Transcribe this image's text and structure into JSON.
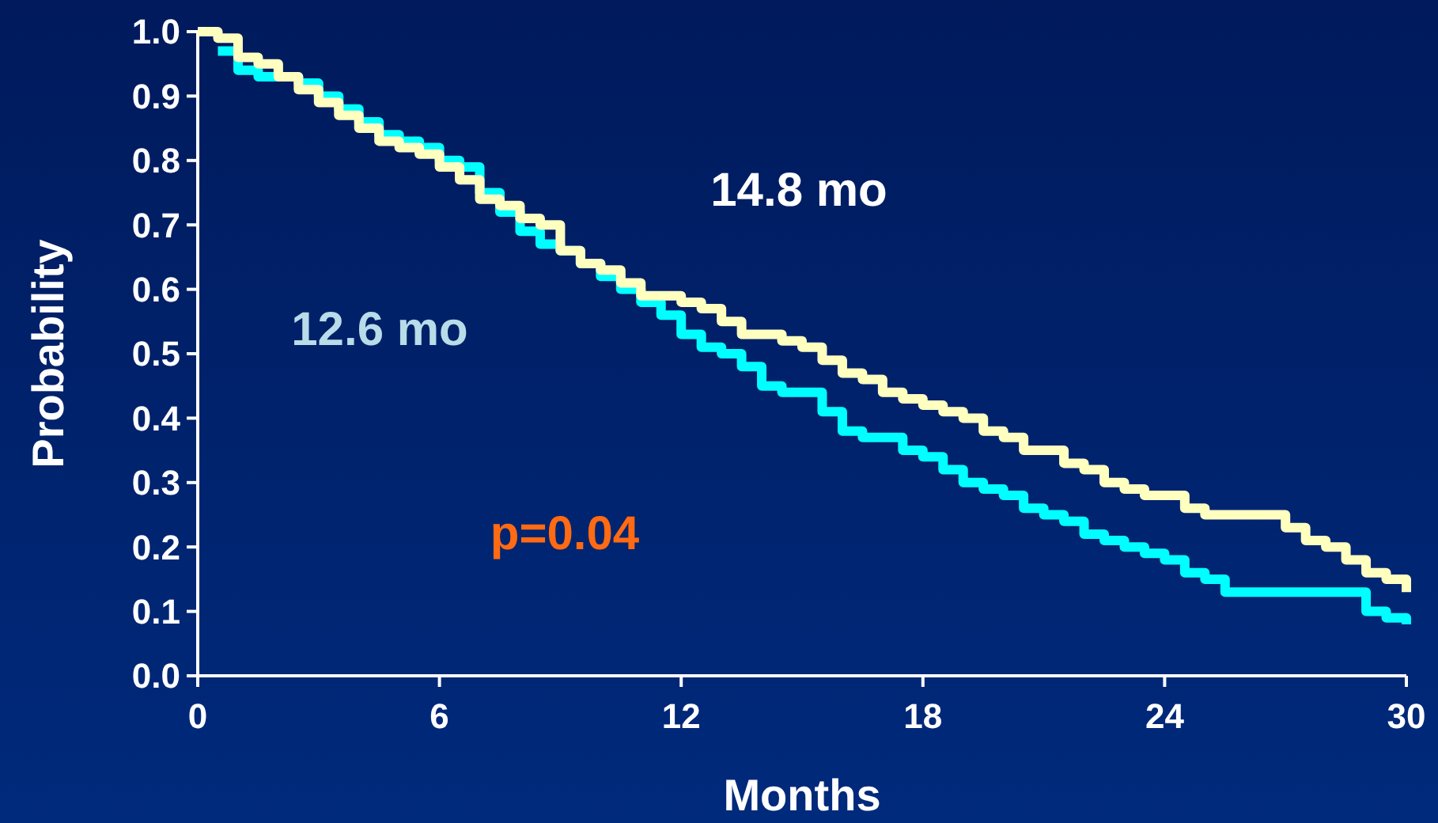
{
  "chart_data": {
    "type": "step",
    "xlabel": "Months",
    "ylabel": "Probability",
    "xlim": [
      0,
      30
    ],
    "ylim": [
      0,
      1
    ],
    "xticks": [
      0,
      6,
      12,
      18,
      24,
      30
    ],
    "yticks": [
      {
        "value": 0,
        "label": "0.0"
      },
      0.1,
      0.2,
      0.3,
      0.4,
      0.5,
      0.6,
      0.7,
      0.8,
      0.9,
      {
        "value": 1,
        "label": "1.0"
      }
    ],
    "grid": false,
    "line_style": "solid",
    "series": [
      {
        "color": "#00ffff",
        "x": [
          0.5,
          1,
          1.5,
          2,
          2.5,
          3,
          3.5,
          4,
          4.5,
          5,
          5.5,
          6,
          6.5,
          7,
          7.5,
          8,
          8.5,
          9,
          9.5,
          10,
          10.5,
          11,
          11.5,
          12,
          12.5,
          13,
          13.5,
          14,
          14.5,
          15,
          15.5,
          16,
          16.5,
          17,
          17.5,
          18,
          18.5,
          19,
          19.5,
          20,
          20.5,
          21,
          21.5,
          22,
          22.5,
          23,
          23.5,
          24,
          24.5,
          25,
          25.5,
          28.5,
          29,
          29.5,
          30
        ],
        "values": [
          0.97,
          0.94,
          0.93,
          0.93,
          0.92,
          0.9,
          0.88,
          0.86,
          0.84,
          0.83,
          0.82,
          0.8,
          0.79,
          0.75,
          0.72,
          0.69,
          0.67,
          0.66,
          0.64,
          0.62,
          0.6,
          0.58,
          0.56,
          0.53,
          0.51,
          0.5,
          0.48,
          0.45,
          0.44,
          0.44,
          0.41,
          0.38,
          0.37,
          0.37,
          0.35,
          0.34,
          0.32,
          0.3,
          0.29,
          0.28,
          0.26,
          0.25,
          0.24,
          0.22,
          0.21,
          0.2,
          0.19,
          0.18,
          0.16,
          0.15,
          0.13,
          0.13,
          0.1,
          0.09,
          0.08
        ]
      },
      {
        "color": "#ffffc0",
        "x": [
          0,
          0.5,
          1,
          1.5,
          2,
          2.5,
          3,
          3.5,
          4,
          4.5,
          5,
          5.5,
          6,
          6.5,
          7,
          7.5,
          8,
          8.5,
          9,
          9.5,
          10,
          10.5,
          11,
          11.5,
          12,
          12.5,
          13,
          13.5,
          14,
          14.5,
          15,
          15.5,
          16,
          16.5,
          17,
          17.5,
          18,
          18.5,
          19,
          19.5,
          20,
          20.5,
          21,
          21.5,
          22,
          22.5,
          23,
          23.5,
          24,
          24.5,
          25,
          26.5,
          27,
          27.5,
          28,
          28.5,
          29,
          29.5,
          30
        ],
        "values": [
          1,
          0.99,
          0.96,
          0.95,
          0.93,
          0.91,
          0.89,
          0.87,
          0.85,
          0.83,
          0.82,
          0.81,
          0.79,
          0.77,
          0.74,
          0.73,
          0.71,
          0.7,
          0.66,
          0.64,
          0.63,
          0.61,
          0.59,
          0.59,
          0.58,
          0.57,
          0.55,
          0.53,
          0.53,
          0.52,
          0.51,
          0.49,
          0.47,
          0.46,
          0.44,
          0.43,
          0.42,
          0.41,
          0.4,
          0.38,
          0.37,
          0.35,
          0.35,
          0.33,
          0.32,
          0.3,
          0.29,
          0.28,
          0.28,
          0.26,
          0.25,
          0.25,
          0.23,
          0.21,
          0.2,
          0.18,
          0.16,
          0.15,
          0.13
        ]
      }
    ],
    "annotations": [
      "14.8 mo",
      "12.6 mo",
      "p=0.04"
    ]
  }
}
